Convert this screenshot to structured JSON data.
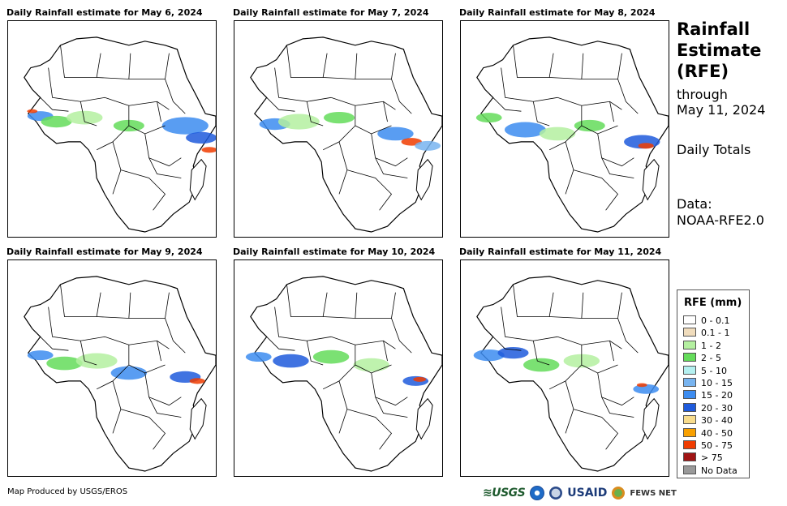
{
  "panels": [
    {
      "title": "Daily Rainfall estimate for May 6, 2024"
    },
    {
      "title": "Daily Rainfall estimate for May 7, 2024"
    },
    {
      "title": "Daily Rainfall estimate for May 8, 2024"
    },
    {
      "title": "Daily Rainfall estimate for May 9, 2024"
    },
    {
      "title": "Daily Rainfall estimate for May 10, 2024"
    },
    {
      "title": "Daily Rainfall estimate for May 11, 2024"
    }
  ],
  "side": {
    "title_line1": "Rainfall",
    "title_line2": "Estimate",
    "title_line3": "(RFE)",
    "through_label": "through",
    "through_date": "May 11, 2024",
    "totals_label": "Daily Totals",
    "data_label": "Data:",
    "data_source": "NOAA-RFE2.0"
  },
  "legend": {
    "title": "RFE (mm)",
    "items": [
      {
        "label": "0 - 0.1",
        "color": "#ffffff"
      },
      {
        "label": "0.1 - 1",
        "color": "#f0dcbc"
      },
      {
        "label": "1 - 2",
        "color": "#b4f0a0"
      },
      {
        "label": "2 - 5",
        "color": "#64dc5a"
      },
      {
        "label": "5 - 10",
        "color": "#b4f0f0"
      },
      {
        "label": "10 - 15",
        "color": "#78b4f0"
      },
      {
        "label": "15 - 20",
        "color": "#3c8cf0"
      },
      {
        "label": "20 - 30",
        "color": "#1e5adc"
      },
      {
        "label": "30 - 40",
        "color": "#f8dc8c"
      },
      {
        "label": "40 - 50",
        "color": "#f8a000"
      },
      {
        "label": "50 - 75",
        "color": "#f03c00"
      },
      {
        "label": "> 75",
        "color": "#a01414"
      },
      {
        "label": "No Data",
        "color": "#999999"
      }
    ]
  },
  "footer": {
    "credit": "Map Produced by USGS/EROS",
    "logo_usgs": "≋USGS",
    "logo_usaid": "USAID",
    "logo_fews": "FEWS NET"
  },
  "map_style": {
    "land_fill": "#ffffff",
    "border_color": "#000000",
    "ocean_fill": "#ffffff"
  }
}
